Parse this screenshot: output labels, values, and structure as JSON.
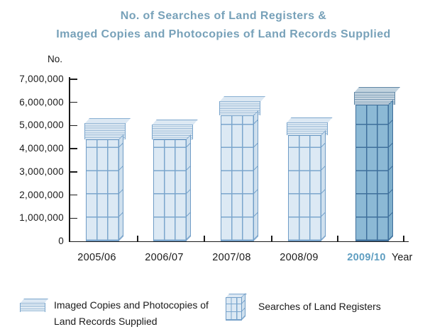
{
  "title": {
    "line1": "No. of Searches of Land Registers &",
    "line2": "Imaged Copies and Photocopies of Land Records Supplied"
  },
  "axes": {
    "y_unit_label": "No.",
    "x_axis_label": "Year"
  },
  "legend": {
    "imaged": {
      "icon": "paper-stack-icon",
      "line1": "Imaged Copies and Photocopies of",
      "line2": "Land Records Supplied"
    },
    "searches": {
      "icon": "grid-column-icon",
      "label": "Searches of Land Registers"
    }
  },
  "colors": {
    "title_blue": "#77a1b9",
    "highlight_year_blue": "#5f9ec1",
    "light_bar_fill": "#dce9f4",
    "light_bar_line": "#7ba6cd",
    "dark_bar_fill": "#8cb9d5",
    "dark_bar_line": "#3e6f9b",
    "axis_text": "#1a1a1a"
  },
  "chart_data": {
    "type": "bar",
    "stacked": true,
    "title": "No. of Searches of Land Registers & Imaged Copies and Photocopies of Land Records Supplied",
    "xlabel": "Year",
    "ylabel": "No.",
    "categories": [
      "2005/06",
      "2006/07",
      "2007/08",
      "2008/09",
      "2009/10"
    ],
    "series": [
      {
        "name": "Searches of Land Registers",
        "values": [
          4400000,
          4400000,
          5450000,
          4600000,
          5900000
        ]
      },
      {
        "name": "Imaged Copies and Photocopies of Land Records Supplied",
        "values": [
          700000,
          650000,
          600000,
          550000,
          550000
        ]
      }
    ],
    "ylim": [
      0,
      7000000
    ],
    "ytick_interval": 1000000,
    "ytick_labels": [
      "0",
      "1,000,000",
      "2,000,000",
      "3,000,000",
      "4,000,000",
      "5,000,000",
      "6,000,000",
      "7,000,000"
    ],
    "grid": false,
    "legend_position": "bottom",
    "highlighted_category": "2009/10"
  }
}
